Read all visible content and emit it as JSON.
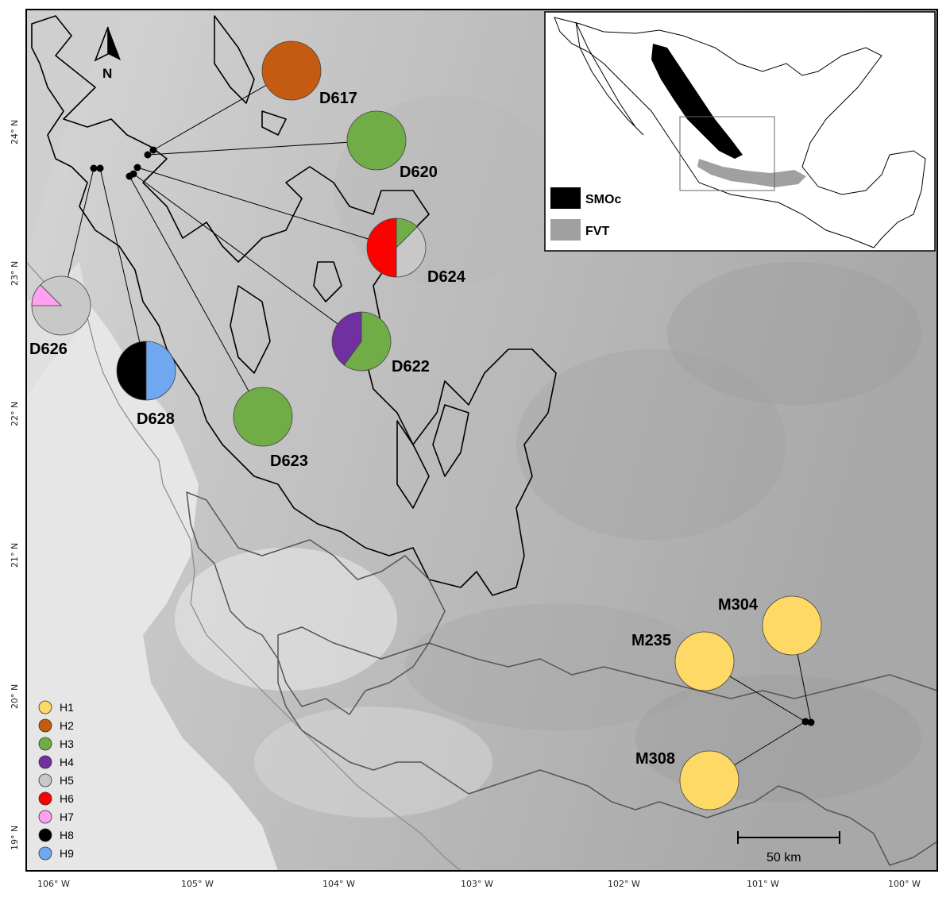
{
  "north_arrow": {
    "label": "N",
    "icon": "north-arrow-icon"
  },
  "axes": {
    "x_ticks": [
      "106° W",
      "105° W",
      "104° W",
      "103° W",
      "102° W",
      "101° W",
      "100° W"
    ],
    "y_ticks": [
      "24° N",
      "23° N",
      "22° N",
      "21° N",
      "20° N",
      "19° N"
    ]
  },
  "scale_bar": {
    "label": "50 km"
  },
  "legend": {
    "items": [
      {
        "label": "H1",
        "color": "#FFD966"
      },
      {
        "label": "H2",
        "color": "#C55A11"
      },
      {
        "label": "H3",
        "color": "#70AD47"
      },
      {
        "label": "H4",
        "color": "#7030A0"
      },
      {
        "label": "H5",
        "color": "#C8C8C8"
      },
      {
        "label": "H6",
        "color": "#FF0000"
      },
      {
        "label": "H7",
        "color": "#FFA0F0"
      },
      {
        "label": "H8",
        "color": "#000000"
      },
      {
        "label": "H9",
        "color": "#6FA8F0"
      }
    ]
  },
  "inset": {
    "legend": [
      {
        "label": "SMOc",
        "color": "#000000"
      },
      {
        "label": "FVT",
        "color": "#A0A0A0"
      }
    ]
  },
  "sites": [
    {
      "id": "D617",
      "label": "D617",
      "haplotypes": [
        {
          "h": "H2",
          "fraction": 1.0
        }
      ]
    },
    {
      "id": "D620",
      "label": "D620",
      "haplotypes": [
        {
          "h": "H3",
          "fraction": 1.0
        }
      ]
    },
    {
      "id": "D624",
      "label": "D624",
      "haplotypes": [
        {
          "h": "H3",
          "fraction": 0.125
        },
        {
          "h": "H5",
          "fraction": 0.375
        },
        {
          "h": "H6",
          "fraction": 0.5
        }
      ]
    },
    {
      "id": "D622",
      "label": "D622",
      "haplotypes": [
        {
          "h": "H3",
          "fraction": 0.6
        },
        {
          "h": "H4",
          "fraction": 0.4
        }
      ]
    },
    {
      "id": "D626",
      "label": "D626",
      "haplotypes": [
        {
          "h": "H5",
          "fraction": 0.875
        },
        {
          "h": "H7",
          "fraction": 0.125
        }
      ]
    },
    {
      "id": "D628",
      "label": "D628",
      "haplotypes": [
        {
          "h": "H9",
          "fraction": 0.5
        },
        {
          "h": "H8",
          "fraction": 0.5
        }
      ]
    },
    {
      "id": "D623",
      "label": "D623",
      "haplotypes": [
        {
          "h": "H3",
          "fraction": 1.0
        }
      ]
    },
    {
      "id": "M304",
      "label": "M304",
      "haplotypes": [
        {
          "h": "H1",
          "fraction": 1.0
        }
      ]
    },
    {
      "id": "M235",
      "label": "M235",
      "haplotypes": [
        {
          "h": "H1",
          "fraction": 1.0
        }
      ]
    },
    {
      "id": "M308",
      "label": "M308",
      "haplotypes": [
        {
          "h": "H1",
          "fraction": 1.0
        }
      ]
    }
  ]
}
